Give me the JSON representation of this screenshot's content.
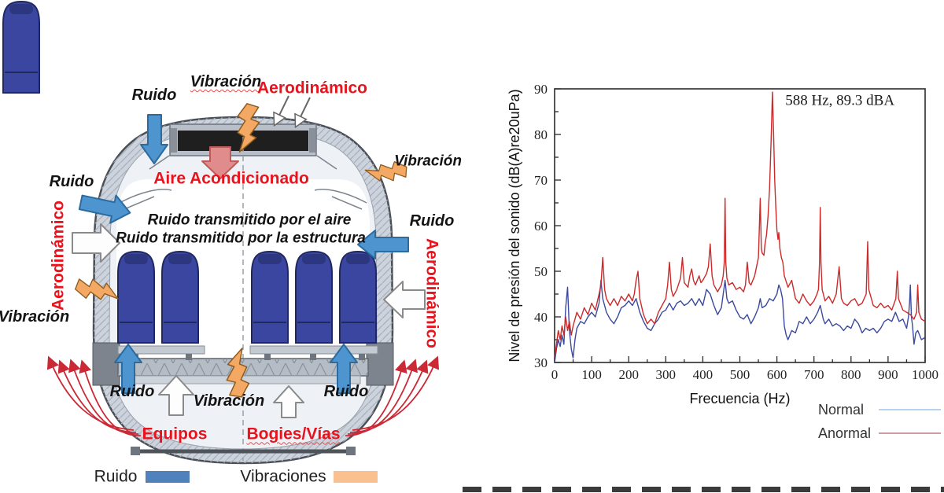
{
  "diagram": {
    "labels": {
      "ruido_top": "Ruido",
      "vibracion_top": "Vibración",
      "aerodinamico_top": "Aerodinámico",
      "vibracion_right": "Vibración",
      "ruido_left": "Ruido",
      "aire_acondicionado": "Aire Acondicionado",
      "ruido_transmitido_aire": "Ruido transmitido por el aire",
      "ruido_transmitido_estructura": "Ruido transmitido por la estructura",
      "ruido_right": "Ruido",
      "aerodinamico_left": "Aerodinámico",
      "aerodinamico_right": "Aerodinámico",
      "vibracion_left": "Vibración",
      "ruido_bottom_left": "Ruido",
      "vibracion_bottom": "Vibración",
      "ruido_bottom_right": "Ruido",
      "equipos": "Equipos",
      "bogies_vias": "Bogies/Vías"
    },
    "legend": {
      "ruido_label": "Ruido",
      "vibraciones_label": "Vibraciones",
      "ruido_color": "#4f81bd",
      "vibraciones_color": "#fac08f"
    },
    "colors": {
      "noise_arrow": "#4e94cf",
      "vibration_bolt": "#f3a963",
      "red_label": "#e8131d",
      "ac_arrow": "#e18c8c",
      "seat": "#3a46a0"
    }
  },
  "chart_data": {
    "type": "line",
    "xlabel": "Frecuencia (Hz)",
    "ylabel": "Nivel de presión del sonido (dB(A)re20uPa)",
    "xlim": [
      0,
      1000
    ],
    "ylim": [
      30,
      90
    ],
    "xticks": [
      0,
      100,
      200,
      300,
      400,
      500,
      600,
      700,
      800,
      900,
      1000
    ],
    "yticks": [
      30,
      40,
      50,
      60,
      70,
      80,
      90
    ],
    "minor_tick_x": 50,
    "minor_tick_y": 5,
    "grid": false,
    "annotation": {
      "text": "588 Hz, 89.3 dBA",
      "x": 770,
      "y": 86.5
    },
    "legend": [
      {
        "label": "Normal",
        "line_color": "#9dc3e6"
      },
      {
        "label": "Anormal",
        "line_color": "#bd7f7f"
      }
    ],
    "series": [
      {
        "name": "Normal",
        "color": "#3b4a9f",
        "points": [
          [
            0,
            30
          ],
          [
            5,
            33
          ],
          [
            10,
            35
          ],
          [
            15,
            33.5
          ],
          [
            20,
            36
          ],
          [
            25,
            34
          ],
          [
            30,
            42
          ],
          [
            35,
            46.5
          ],
          [
            40,
            37
          ],
          [
            45,
            33
          ],
          [
            50,
            31
          ],
          [
            55,
            35
          ],
          [
            60,
            37.5
          ],
          [
            70,
            39
          ],
          [
            80,
            38.5
          ],
          [
            90,
            40
          ],
          [
            100,
            41
          ],
          [
            110,
            40
          ],
          [
            120,
            43
          ],
          [
            125,
            48
          ],
          [
            130,
            44
          ],
          [
            140,
            41
          ],
          [
            150,
            39.5
          ],
          [
            160,
            38.5
          ],
          [
            170,
            40
          ],
          [
            180,
            42
          ],
          [
            190,
            42.5
          ],
          [
            200,
            43.5
          ],
          [
            210,
            42.5
          ],
          [
            220,
            44
          ],
          [
            230,
            41
          ],
          [
            240,
            39
          ],
          [
            250,
            37.5
          ],
          [
            260,
            37
          ],
          [
            270,
            38.5
          ],
          [
            280,
            39.5
          ],
          [
            290,
            41
          ],
          [
            300,
            41.5
          ],
          [
            310,
            43
          ],
          [
            320,
            41.5
          ],
          [
            330,
            43
          ],
          [
            340,
            43.5
          ],
          [
            350,
            42.5
          ],
          [
            360,
            43
          ],
          [
            370,
            44
          ],
          [
            380,
            42.5
          ],
          [
            390,
            44
          ],
          [
            400,
            42.5
          ],
          [
            410,
            46
          ],
          [
            420,
            45
          ],
          [
            430,
            42.5
          ],
          [
            440,
            40.5
          ],
          [
            450,
            42
          ],
          [
            460,
            48
          ],
          [
            465,
            44
          ],
          [
            470,
            43
          ],
          [
            480,
            43.5
          ],
          [
            490,
            41.5
          ],
          [
            500,
            40
          ],
          [
            510,
            39.5
          ],
          [
            520,
            40.5
          ],
          [
            530,
            38.5
          ],
          [
            540,
            40
          ],
          [
            550,
            42
          ],
          [
            555,
            44
          ],
          [
            560,
            42
          ],
          [
            570,
            42.5
          ],
          [
            580,
            44
          ],
          [
            590,
            43.5
          ],
          [
            600,
            45
          ],
          [
            605,
            47
          ],
          [
            610,
            46
          ],
          [
            615,
            44
          ],
          [
            620,
            38
          ],
          [
            625,
            36
          ],
          [
            630,
            35
          ],
          [
            640,
            37
          ],
          [
            650,
            36.5
          ],
          [
            660,
            39
          ],
          [
            670,
            38.5
          ],
          [
            680,
            40
          ],
          [
            690,
            38.5
          ],
          [
            700,
            39.5
          ],
          [
            710,
            41
          ],
          [
            717,
            42.5
          ],
          [
            725,
            39.5
          ],
          [
            730,
            38.5
          ],
          [
            740,
            39.5
          ],
          [
            750,
            38
          ],
          [
            760,
            38.5
          ],
          [
            770,
            38
          ],
          [
            780,
            37
          ],
          [
            790,
            38
          ],
          [
            800,
            37.5
          ],
          [
            810,
            39.5
          ],
          [
            820,
            38.5
          ],
          [
            830,
            36.5
          ],
          [
            840,
            37.5
          ],
          [
            850,
            37
          ],
          [
            860,
            37.5
          ],
          [
            870,
            36.5
          ],
          [
            880,
            37.5
          ],
          [
            890,
            39
          ],
          [
            900,
            39.5
          ],
          [
            910,
            39
          ],
          [
            920,
            41
          ],
          [
            930,
            39
          ],
          [
            940,
            39.5
          ],
          [
            950,
            37.5
          ],
          [
            955,
            40
          ],
          [
            958,
            43
          ],
          [
            960,
            47
          ],
          [
            963,
            40
          ],
          [
            966,
            38
          ],
          [
            970,
            34
          ],
          [
            975,
            36.5
          ],
          [
            980,
            37
          ],
          [
            990,
            35
          ],
          [
            1000,
            35.5
          ]
        ]
      },
      {
        "name": "Anormal",
        "color": "#cd2a2a",
        "points": [
          [
            0,
            31
          ],
          [
            5,
            34
          ],
          [
            10,
            37
          ],
          [
            15,
            35
          ],
          [
            20,
            38
          ],
          [
            25,
            36
          ],
          [
            30,
            40
          ],
          [
            35,
            37
          ],
          [
            40,
            39
          ],
          [
            45,
            36
          ],
          [
            50,
            38
          ],
          [
            60,
            41
          ],
          [
            70,
            39.5
          ],
          [
            80,
            42
          ],
          [
            90,
            40.5
          ],
          [
            100,
            43
          ],
          [
            110,
            41.5
          ],
          [
            120,
            45
          ],
          [
            125,
            47
          ],
          [
            130,
            53
          ],
          [
            135,
            46
          ],
          [
            140,
            44
          ],
          [
            150,
            42.5
          ],
          [
            160,
            44
          ],
          [
            170,
            42.5
          ],
          [
            180,
            44.5
          ],
          [
            190,
            43.5
          ],
          [
            200,
            45
          ],
          [
            210,
            43.5
          ],
          [
            215,
            45
          ],
          [
            220,
            48
          ],
          [
            225,
            50
          ],
          [
            230,
            44
          ],
          [
            240,
            40.5
          ],
          [
            250,
            38.5
          ],
          [
            260,
            39.5
          ],
          [
            270,
            38.5
          ],
          [
            280,
            41
          ],
          [
            290,
            42.5
          ],
          [
            300,
            44
          ],
          [
            305,
            47
          ],
          [
            310,
            52
          ],
          [
            315,
            46
          ],
          [
            320,
            44.5
          ],
          [
            330,
            46
          ],
          [
            340,
            48.5
          ],
          [
            345,
            53
          ],
          [
            350,
            47.5
          ],
          [
            360,
            46.5
          ],
          [
            365,
            49
          ],
          [
            370,
            50.5
          ],
          [
            375,
            48
          ],
          [
            380,
            47
          ],
          [
            390,
            49
          ],
          [
            395,
            47.5
          ],
          [
            400,
            48
          ],
          [
            410,
            49.5
          ],
          [
            415,
            51
          ],
          [
            420,
            56
          ],
          [
            425,
            49
          ],
          [
            430,
            47
          ],
          [
            440,
            45.5
          ],
          [
            450,
            47
          ],
          [
            455,
            49
          ],
          [
            458,
            52
          ],
          [
            460,
            66
          ],
          [
            462,
            52
          ],
          [
            465,
            48.5
          ],
          [
            470,
            47
          ],
          [
            480,
            47.5
          ],
          [
            490,
            46
          ],
          [
            500,
            46.5
          ],
          [
            510,
            45.5
          ],
          [
            515,
            47
          ],
          [
            520,
            52
          ],
          [
            525,
            47.5
          ],
          [
            530,
            47
          ],
          [
            540,
            49
          ],
          [
            545,
            51
          ],
          [
            550,
            53
          ],
          [
            555,
            66
          ],
          [
            558,
            55
          ],
          [
            560,
            54
          ],
          [
            565,
            53.5
          ],
          [
            568,
            56
          ],
          [
            572,
            58
          ],
          [
            576,
            62
          ],
          [
            580,
            68
          ],
          [
            584,
            78
          ],
          [
            588,
            89.3
          ],
          [
            591,
            80
          ],
          [
            594,
            70
          ],
          [
            597,
            64
          ],
          [
            600,
            59
          ],
          [
            603,
            57
          ],
          [
            605,
            58.5
          ],
          [
            608,
            55
          ],
          [
            612,
            53
          ],
          [
            616,
            52
          ],
          [
            620,
            49
          ],
          [
            630,
            46.5
          ],
          [
            640,
            48
          ],
          [
            650,
            44
          ],
          [
            660,
            43
          ],
          [
            670,
            45
          ],
          [
            680,
            43.5
          ],
          [
            690,
            42.5
          ],
          [
            700,
            43.5
          ],
          [
            708,
            45
          ],
          [
            712,
            46
          ],
          [
            715,
            52
          ],
          [
            717,
            64
          ],
          [
            719,
            52
          ],
          [
            722,
            46
          ],
          [
            730,
            43.5
          ],
          [
            740,
            44.5
          ],
          [
            750,
            43
          ],
          [
            760,
            45
          ],
          [
            768,
            51
          ],
          [
            774,
            44
          ],
          [
            780,
            43
          ],
          [
            790,
            42.5
          ],
          [
            800,
            43.5
          ],
          [
            810,
            44
          ],
          [
            820,
            42.5
          ],
          [
            830,
            43
          ],
          [
            841,
            45
          ],
          [
            845,
            56.5
          ],
          [
            848,
            46
          ],
          [
            860,
            42.5
          ],
          [
            870,
            42
          ],
          [
            880,
            43
          ],
          [
            890,
            42
          ],
          [
            900,
            42.5
          ],
          [
            910,
            41.5
          ],
          [
            921,
            44
          ],
          [
            925,
            50
          ],
          [
            928,
            44
          ],
          [
            940,
            41.5
          ],
          [
            950,
            41
          ],
          [
            960,
            40.5
          ],
          [
            970,
            39.5
          ],
          [
            977,
            41
          ],
          [
            980,
            47
          ],
          [
            983,
            41
          ],
          [
            990,
            39.5
          ],
          [
            1000,
            39
          ]
        ]
      }
    ]
  }
}
